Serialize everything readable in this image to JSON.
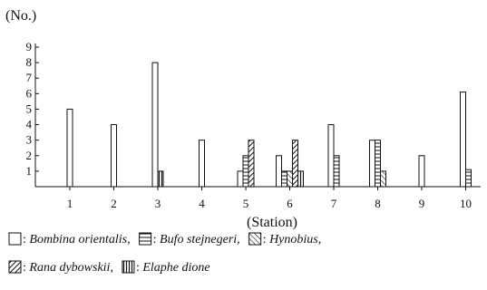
{
  "chart_data": {
    "type": "bar",
    "ylabel": "(No.)",
    "xlabel": "(Station)",
    "categories": [
      "1",
      "2",
      "3",
      "4",
      "5",
      "6",
      "7",
      "8",
      "9",
      "10"
    ],
    "yticks": [
      "1",
      "2",
      "3",
      "4",
      "5",
      "6",
      "7",
      "8",
      "9"
    ],
    "ylim": [
      0,
      9
    ],
    "grid": false,
    "legend_position": "bottom",
    "series": [
      {
        "name": "Bombina orientalis",
        "pattern": "blank",
        "values": [
          5,
          4,
          8,
          3,
          1,
          2,
          4,
          3,
          2,
          6.1
        ]
      },
      {
        "name": "Bufo stejnegeri",
        "pattern": "horizontal",
        "values": [
          0,
          0,
          0,
          0,
          2,
          1,
          2,
          3,
          0,
          1.1
        ]
      },
      {
        "name": "Hynobius",
        "pattern": "diagonal-down",
        "values": [
          0,
          0,
          0,
          0,
          0,
          1,
          0,
          1,
          0,
          0
        ]
      },
      {
        "name": "Rana dybowskii",
        "pattern": "diagonal-up",
        "values": [
          0,
          0,
          0,
          0,
          3,
          3,
          0,
          0,
          0,
          0
        ]
      },
      {
        "name": "Elaphe dione",
        "pattern": "vertical",
        "values": [
          0,
          0,
          1,
          0,
          0,
          1,
          0,
          0,
          0,
          0
        ]
      }
    ],
    "legend": {
      "row1": [
        {
          "name": "Bombina orientalis",
          "pattern": "blank",
          "suffix": ","
        },
        {
          "name": "Bufo stejnegeri",
          "pattern": "horizontal",
          "suffix": ","
        },
        {
          "name": "Hynobius",
          "pattern": "diagonal-down",
          "suffix": ","
        }
      ],
      "row2": [
        {
          "name": "Rana dybowskii",
          "pattern": "diagonal-up",
          "suffix": ","
        },
        {
          "name": "Elaphe dione",
          "pattern": "vertical",
          "suffix": ""
        }
      ]
    }
  }
}
